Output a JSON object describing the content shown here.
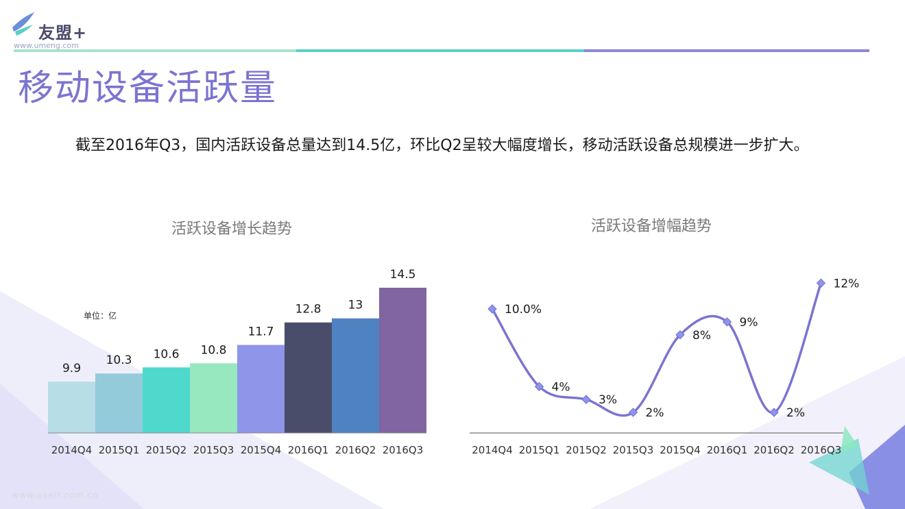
{
  "brand": {
    "name": "友盟+",
    "url": "www.umeng.com"
  },
  "page": {
    "title": "移动设备活跃量",
    "intro": "截至2016年Q3，国内活跃设备总量达到14.5亿，环比Q2呈较大幅度增长，移动活跃设备总规模进一步扩大。",
    "watermark": "www.useit.com.cn"
  },
  "colors": {
    "accent": "#7b74d0",
    "line": "#7b74d0",
    "marker": "#8f95e8"
  },
  "chart_data": [
    {
      "type": "bar",
      "title": "活跃设备增长趋势",
      "unit_label": "单位：亿",
      "categories": [
        "2014Q4",
        "2015Q1",
        "2015Q2",
        "2015Q3",
        "2015Q4",
        "2016Q1",
        "2016Q2",
        "2016Q3"
      ],
      "values": [
        9.9,
        10.3,
        10.6,
        10.8,
        11.7,
        12.8,
        13,
        14.5
      ],
      "labels": [
        "9.9",
        "10.3",
        "10.6",
        "10.8",
        "11.7",
        "12.8",
        "13",
        "14.5"
      ],
      "bar_colors": [
        "#b7dde7",
        "#93cbdb",
        "#4fd9cc",
        "#97e8bf",
        "#8f95e8",
        "#4a4d6a",
        "#4f82c0",
        "#8164a2"
      ],
      "ylim": [
        9,
        14.5
      ],
      "grid": false,
      "legend": "none"
    },
    {
      "type": "line",
      "title": "活跃设备增幅趋势",
      "categories": [
        "2014Q4",
        "2015Q1",
        "2015Q2",
        "2015Q3",
        "2015Q4",
        "2016Q1",
        "2016Q2",
        "2016Q3"
      ],
      "values": [
        10.0,
        4,
        3,
        2,
        8,
        9,
        2,
        12
      ],
      "labels": [
        "10.0%",
        "4%",
        "3%",
        "2%",
        "8%",
        "9%",
        "2%",
        "12%"
      ],
      "grid": false,
      "legend": "none"
    }
  ]
}
